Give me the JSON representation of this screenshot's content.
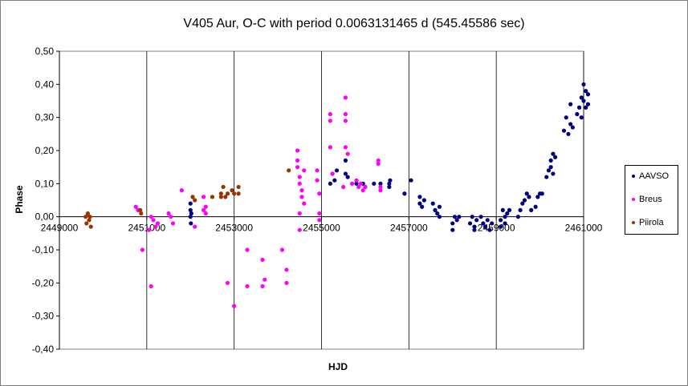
{
  "chart_data": {
    "type": "scatter",
    "title": "V405 Aur, O-C with period 0.0063131465 d (545.45586 sec)",
    "xlabel": "HJD",
    "ylabel": "Phase",
    "xlim": [
      2449000,
      2461000
    ],
    "ylim": [
      -0.4,
      0.5
    ],
    "xticks": [
      2449000,
      2451000,
      2453000,
      2455000,
      2457000,
      2459000,
      2461000
    ],
    "xtick_labels": [
      "2449000",
      "2451000",
      "2453000",
      "2455000",
      "2457000",
      "2459000",
      "2461000"
    ],
    "yticks": [
      -0.4,
      -0.3,
      -0.2,
      -0.1,
      0.0,
      0.1,
      0.2,
      0.3,
      0.4,
      0.5
    ],
    "ytick_labels": [
      "-0,40",
      "-0,30",
      "-0,20",
      "-0,10",
      "0,00",
      "0,10",
      "0,20",
      "0,30",
      "0,40",
      "0,50"
    ],
    "grid": "vertical major gridlines",
    "legend_position": "right",
    "series": [
      {
        "name": "AAVSO",
        "color": "#000080",
        "points": [
          [
            2452000,
            0.0
          ],
          [
            2452000,
            0.02
          ],
          [
            2452000,
            0.04
          ],
          [
            2452010,
            -0.02
          ],
          [
            2452020,
            0.01
          ],
          [
            2455200,
            0.1
          ],
          [
            2455250,
            0.13
          ],
          [
            2455300,
            0.11
          ],
          [
            2455350,
            0.14
          ],
          [
            2455550,
            0.13
          ],
          [
            2455550,
            0.17
          ],
          [
            2455600,
            0.12
          ],
          [
            2455800,
            0.1
          ],
          [
            2455950,
            0.1
          ],
          [
            2456000,
            0.09
          ],
          [
            2456200,
            0.1
          ],
          [
            2456350,
            0.1
          ],
          [
            2456550,
            0.1
          ],
          [
            2456550,
            0.09
          ],
          [
            2456570,
            0.11
          ],
          [
            2456900,
            0.07
          ],
          [
            2457050,
            0.11
          ],
          [
            2457250,
            0.06
          ],
          [
            2457250,
            0.04
          ],
          [
            2457300,
            0.03
          ],
          [
            2457350,
            0.05
          ],
          [
            2457550,
            0.04
          ],
          [
            2457600,
            0.02
          ],
          [
            2457650,
            0.01
          ],
          [
            2457700,
            0.0
          ],
          [
            2457700,
            0.03
          ],
          [
            2458000,
            -0.02
          ],
          [
            2458050,
            0.0
          ],
          [
            2458100,
            -0.01
          ],
          [
            2458150,
            0.0
          ],
          [
            2458000,
            -0.04
          ],
          [
            2458400,
            -0.02
          ],
          [
            2458450,
            0.0
          ],
          [
            2458500,
            -0.03
          ],
          [
            2458550,
            -0.01
          ],
          [
            2458500,
            -0.04
          ],
          [
            2458700,
            -0.02
          ],
          [
            2458750,
            -0.03
          ],
          [
            2458800,
            -0.01
          ],
          [
            2458850,
            -0.04
          ],
          [
            2458900,
            -0.02
          ],
          [
            2458650,
            0.0
          ],
          [
            2459100,
            -0.01
          ],
          [
            2459150,
            0.02
          ],
          [
            2459200,
            0.0
          ],
          [
            2459250,
            0.01
          ],
          [
            2459300,
            0.02
          ],
          [
            2459100,
            -0.03
          ],
          [
            2459200,
            -0.02
          ],
          [
            2459500,
            0.0
          ],
          [
            2459550,
            0.02
          ],
          [
            2459600,
            0.04
          ],
          [
            2459650,
            0.05
          ],
          [
            2459700,
            0.07
          ],
          [
            2459750,
            0.06
          ],
          [
            2459800,
            0.02
          ],
          [
            2459900,
            0.03
          ],
          [
            2459950,
            0.06
          ],
          [
            2460000,
            0.07
          ],
          [
            2460050,
            0.07
          ],
          [
            2460150,
            0.12
          ],
          [
            2460200,
            0.14
          ],
          [
            2460250,
            0.17
          ],
          [
            2460300,
            0.19
          ],
          [
            2460350,
            0.18
          ],
          [
            2460250,
            0.15
          ],
          [
            2460300,
            0.13
          ],
          [
            2460550,
            0.26
          ],
          [
            2460600,
            0.3
          ],
          [
            2460650,
            0.25
          ],
          [
            2460700,
            0.28
          ],
          [
            2460750,
            0.27
          ],
          [
            2460700,
            0.34
          ],
          [
            2460850,
            0.31
          ],
          [
            2460900,
            0.33
          ],
          [
            2460950,
            0.36
          ],
          [
            2461000,
            0.35
          ],
          [
            2461050,
            0.38
          ],
          [
            2461000,
            0.4
          ],
          [
            2461050,
            0.33
          ],
          [
            2460950,
            0.3
          ],
          [
            2461100,
            0.37
          ],
          [
            2461100,
            0.34
          ]
        ]
      },
      {
        "name": "Breus",
        "color": "#ff00ff",
        "points": [
          [
            2450750,
            0.03
          ],
          [
            2450800,
            0.02
          ],
          [
            2450900,
            -0.1
          ],
          [
            2451050,
            -0.04
          ],
          [
            2451100,
            0.0
          ],
          [
            2451150,
            -0.01
          ],
          [
            2451200,
            -0.03
          ],
          [
            2451250,
            -0.02
          ],
          [
            2451100,
            -0.21
          ],
          [
            2451500,
            0.01
          ],
          [
            2451550,
            0.0
          ],
          [
            2451600,
            -0.02
          ],
          [
            2451800,
            0.08
          ],
          [
            2452100,
            -0.03
          ],
          [
            2452300,
            0.06
          ],
          [
            2452350,
            0.03
          ],
          [
            2452300,
            0.02
          ],
          [
            2452350,
            0.01
          ],
          [
            2452850,
            -0.2
          ],
          [
            2453300,
            -0.1
          ],
          [
            2453300,
            -0.21
          ],
          [
            2453000,
            -0.27
          ],
          [
            2453650,
            -0.13
          ],
          [
            2453700,
            -0.19
          ],
          [
            2453650,
            -0.21
          ],
          [
            2454100,
            -0.1
          ],
          [
            2454200,
            -0.2
          ],
          [
            2454200,
            -0.16
          ],
          [
            2454450,
            0.2
          ],
          [
            2454450,
            0.17
          ],
          [
            2454450,
            0.15
          ],
          [
            2454500,
            0.12
          ],
          [
            2454500,
            0.1
          ],
          [
            2454550,
            0.08
          ],
          [
            2454550,
            0.06
          ],
          [
            2454600,
            0.04
          ],
          [
            2454600,
            0.14
          ],
          [
            2454500,
            0.01
          ],
          [
            2454500,
            -0.04
          ],
          [
            2454900,
            0.14
          ],
          [
            2454900,
            0.11
          ],
          [
            2454950,
            0.07
          ],
          [
            2454950,
            0.01
          ],
          [
            2454950,
            -0.01
          ],
          [
            2455200,
            0.31
          ],
          [
            2455200,
            0.29
          ],
          [
            2455200,
            0.21
          ],
          [
            2455250,
            0.13
          ],
          [
            2455500,
            0.09
          ],
          [
            2455550,
            0.36
          ],
          [
            2455550,
            0.31
          ],
          [
            2455550,
            0.29
          ],
          [
            2455550,
            0.21
          ],
          [
            2455600,
            0.19
          ],
          [
            2455700,
            0.1
          ],
          [
            2455800,
            0.11
          ],
          [
            2455850,
            0.09
          ],
          [
            2455900,
            0.1
          ],
          [
            2455950,
            0.08
          ],
          [
            2456000,
            0.09
          ],
          [
            2456300,
            0.17
          ],
          [
            2456300,
            0.16
          ],
          [
            2456350,
            0.09
          ],
          [
            2456350,
            0.08
          ]
        ]
      },
      {
        "name": "Piirola",
        "color": "#993300",
        "points": [
          [
            2449600,
            0.0
          ],
          [
            2449620,
            -0.02
          ],
          [
            2449650,
            0.01
          ],
          [
            2449680,
            -0.01
          ],
          [
            2449700,
            0.0
          ],
          [
            2449720,
            -0.03
          ],
          [
            2449650,
            0.005
          ],
          [
            2450850,
            0.02
          ],
          [
            2450870,
            0.01
          ],
          [
            2452050,
            0.06
          ],
          [
            2452100,
            0.05
          ],
          [
            2452500,
            0.06
          ],
          [
            2452700,
            0.07
          ],
          [
            2452750,
            0.09
          ],
          [
            2452800,
            0.06
          ],
          [
            2452850,
            0.07
          ],
          [
            2452700,
            0.06
          ],
          [
            2452950,
            0.08
          ],
          [
            2453000,
            0.07
          ],
          [
            2453100,
            0.09
          ],
          [
            2453100,
            0.07
          ],
          [
            2454250,
            0.14
          ]
        ]
      }
    ]
  }
}
